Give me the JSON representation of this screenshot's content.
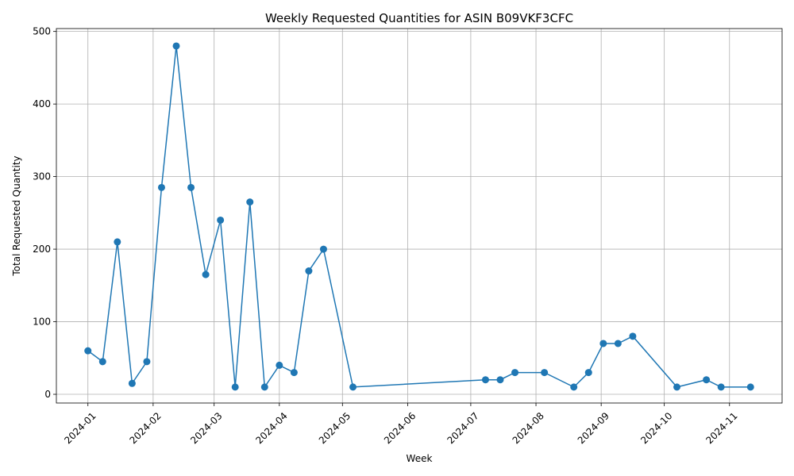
{
  "chart_data": {
    "type": "line",
    "title": "Weekly Requested Quantities for ASIN B09VKF3CFC",
    "xlabel": "Week",
    "ylabel": "Total Requested Quantity",
    "x_tick_labels": [
      "2024-01",
      "2024-02",
      "2024-03",
      "2024-04",
      "2024-05",
      "2024-06",
      "2024-07",
      "2024-08",
      "2024-09",
      "2024-10",
      "2024-11"
    ],
    "y_ticks": [
      0,
      100,
      200,
      300,
      400,
      500
    ],
    "ylim": [
      -12,
      504
    ],
    "xlim": [
      "2023-12-17",
      "2024-11-26"
    ],
    "grid": true,
    "color": "#1f77b4",
    "series": [
      {
        "x": [
          "2024-01-01",
          "2024-01-08",
          "2024-01-15",
          "2024-01-22",
          "2024-01-29",
          "2024-02-05",
          "2024-02-12",
          "2024-02-19",
          "2024-02-26",
          "2024-03-04",
          "2024-03-11",
          "2024-03-18",
          "2024-03-25",
          "2024-04-01",
          "2024-04-08",
          "2024-04-15",
          "2024-04-22",
          "2024-05-06",
          "2024-07-08",
          "2024-07-15",
          "2024-07-22",
          "2024-08-05",
          "2024-08-19",
          "2024-08-26",
          "2024-09-02",
          "2024-09-09",
          "2024-09-16",
          "2024-10-07",
          "2024-10-21",
          "2024-10-28",
          "2024-11-11"
        ],
        "values": [
          60,
          45,
          210,
          15,
          45,
          285,
          480,
          285,
          165,
          240,
          10,
          265,
          10,
          40,
          30,
          170,
          200,
          10,
          20,
          20,
          30,
          30,
          10,
          30,
          70,
          70,
          80,
          10,
          20,
          10,
          10
        ]
      }
    ]
  }
}
